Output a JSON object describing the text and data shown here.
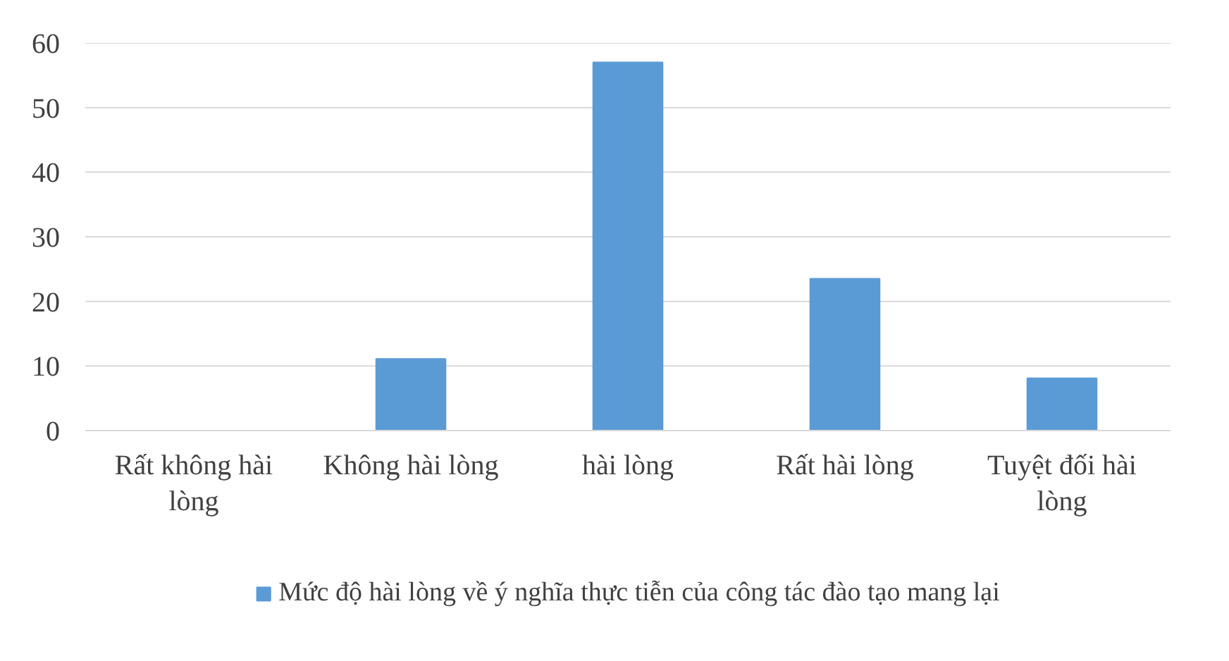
{
  "chart_data": {
    "type": "bar",
    "categories": [
      "Rất không hài lòng",
      "Không hài lòng",
      "hài lòng",
      "Rất hài lòng",
      "Tuyệt đối hài lòng"
    ],
    "series": [
      {
        "name": "Mức độ hài lòng về ý nghĩa thực tiễn của công tác đào tạo mang lại",
        "color": "#5b9bd5",
        "values": [
          0,
          11.1,
          57,
          23.5,
          8.1
        ]
      }
    ],
    "ylim": [
      0,
      60
    ],
    "yticks": [
      0,
      10,
      20,
      30,
      40,
      50,
      60
    ],
    "grid": "y",
    "legend": "bottom"
  }
}
